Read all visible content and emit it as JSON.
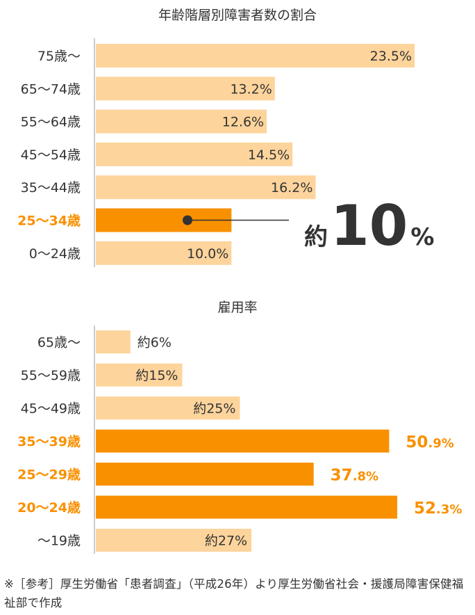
{
  "chart_data": [
    {
      "type": "bar",
      "title": "年齢階層別障害者数の割合",
      "categories": [
        "75歳〜",
        "65〜74歳",
        "55〜64歳",
        "45〜54歳",
        "35〜44歳",
        "25〜34歳",
        "0〜24歳"
      ],
      "values": [
        23.5,
        13.2,
        12.6,
        14.5,
        16.2,
        10.0,
        10.0
      ],
      "value_labels": [
        "23.5%",
        "13.2%",
        "12.6%",
        "14.5%",
        "16.2%",
        "",
        "10.0%"
      ],
      "highlight": [
        false,
        false,
        false,
        false,
        false,
        true,
        false
      ],
      "callout": {
        "prefix": "約",
        "number": "10",
        "unit": "%"
      },
      "xlim": [
        0,
        25
      ]
    },
    {
      "type": "bar",
      "title": "雇用率",
      "categories": [
        "65歳〜",
        "55〜59歳",
        "45〜49歳",
        "35〜39歳",
        "25〜29歳",
        "20〜24歳",
        "〜19歳"
      ],
      "values": [
        6,
        15,
        25,
        50.9,
        37.8,
        52.3,
        27
      ],
      "value_labels": [
        {
          "main": "約6%",
          "small": ""
        },
        {
          "main": "約15%",
          "small": ""
        },
        {
          "main": "約25%",
          "small": ""
        },
        {
          "main": "50",
          "small": ".9%"
        },
        {
          "main": "37",
          "small": ".8%"
        },
        {
          "main": "52",
          "small": ".3%"
        },
        {
          "main": "約27%",
          "small": ""
        }
      ],
      "highlight": [
        false,
        false,
        false,
        true,
        true,
        true,
        false
      ],
      "xlim": [
        0,
        60
      ]
    }
  ],
  "colors": {
    "bar": "#fdd49c",
    "highlight": "#f99000",
    "text": "#333333",
    "line": "#333333",
    "axis": "#9a9a9a"
  },
  "footnote": "※［参考］厚生労働省「患者調査」（平成26年）より厚生労働省社会・援護局障害保健福祉部で作成"
}
